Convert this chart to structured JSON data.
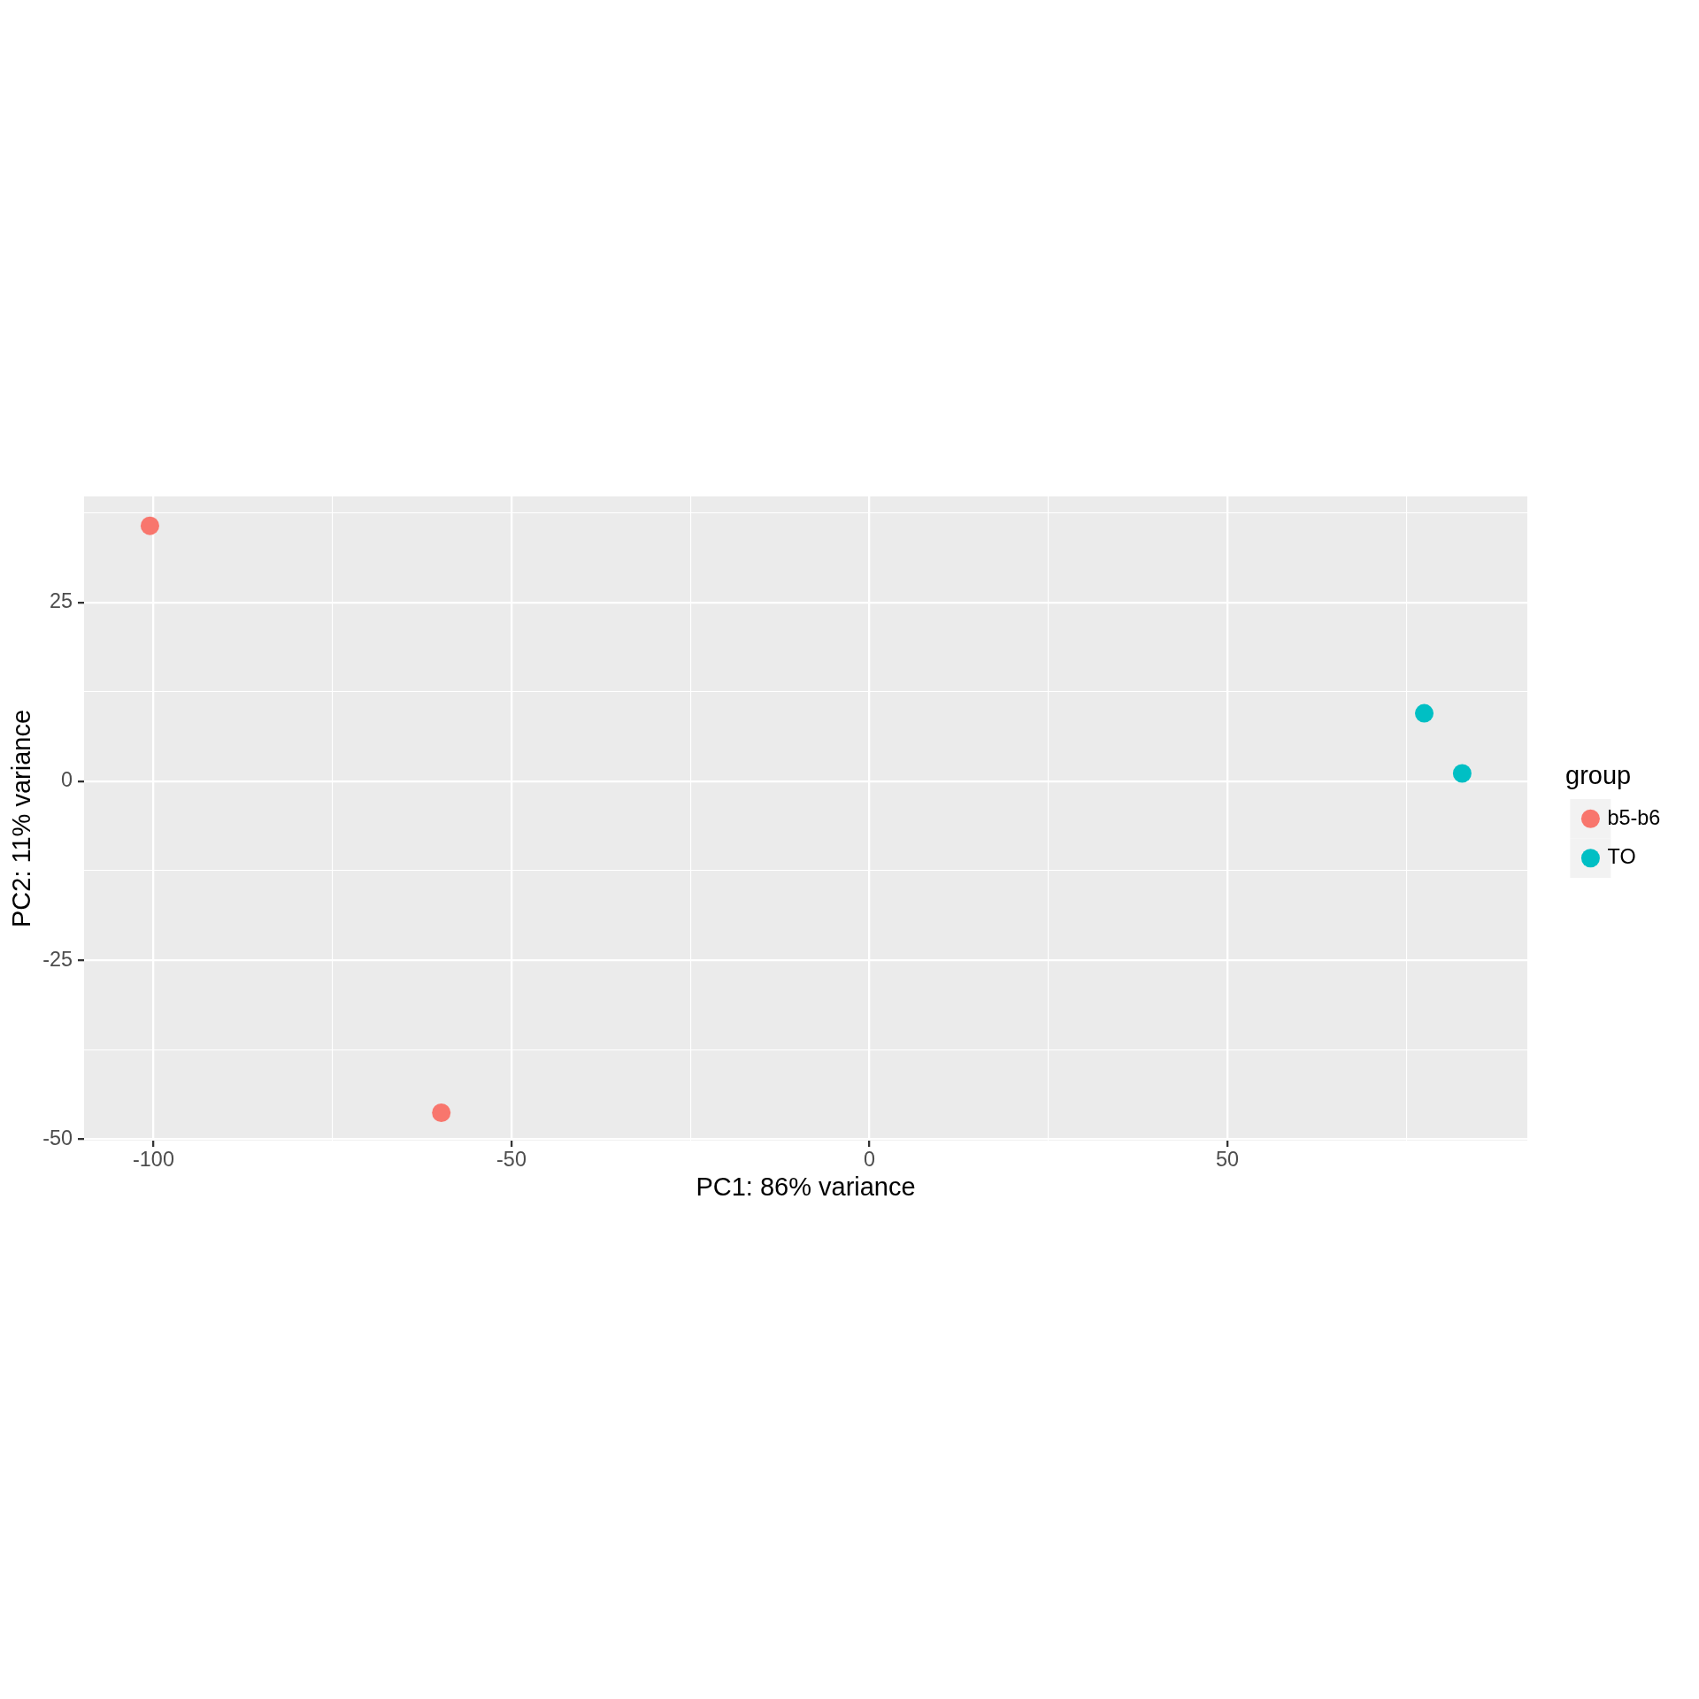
{
  "chart_data": {
    "type": "scatter",
    "xlabel": "PC1: 86% variance",
    "ylabel": "PC2: 11% variance",
    "legend_title": "group",
    "series": [
      {
        "name": "b5-b6",
        "color": "#f8766d",
        "x": [
          -100.5,
          -59.8
        ],
        "values": [
          35.7,
          -46.3
        ]
      },
      {
        "name": "TO",
        "color": "#00bfc4",
        "x": [
          77.5,
          82.8
        ],
        "values": [
          9.5,
          1.1
        ]
      }
    ],
    "xlim": [
      -109.7,
      91.9
    ],
    "ylim": [
      -50.2,
      39.8
    ],
    "xticks": [
      -100,
      {
        "value": -75,
        "label": null
      },
      -50,
      {
        "value": -25,
        "label": null
      },
      0,
      {
        "value": 25,
        "label": null
      },
      50,
      {
        "value": 75,
        "label": null
      }
    ],
    "yticks": [
      -50,
      {
        "value": -37.5,
        "label": null
      },
      -25,
      {
        "value": -12.5,
        "label": null
      },
      0,
      {
        "value": 12.5,
        "label": null
      },
      25,
      {
        "value": 37.5,
        "label": null
      }
    ],
    "grid": true,
    "legend": "right",
    "marker": "circle"
  }
}
